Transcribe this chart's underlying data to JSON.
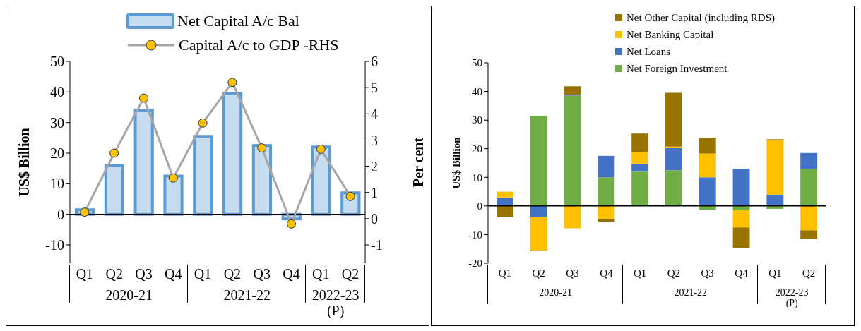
{
  "chart_data": [
    {
      "type": "bar",
      "categories": [
        "Q1",
        "Q2",
        "Q3",
        "Q4",
        "Q1",
        "Q2",
        "Q3",
        "Q4",
        "Q1",
        "Q2"
      ],
      "annotations": [
        "2020-21",
        "2021-22",
        "2022-23 (P)"
      ],
      "ylabel": "US$ Billion",
      "y2label": "Per cent",
      "ylim": [
        -16,
        50
      ],
      "yticks": [
        -10,
        0,
        10,
        20,
        30,
        40,
        50
      ],
      "y2lim": [
        -1.7,
        6
      ],
      "y2ticks": [
        -1,
        0,
        1,
        2,
        3,
        4,
        5,
        6
      ],
      "legend": "top",
      "marker": "circle",
      "series": [
        {
          "name": "Net Capital A/c Bal",
          "color": "#5b9bd5",
          "values": [
            1.5,
            16,
            34,
            12.5,
            25.5,
            39.5,
            22.5,
            -1.5,
            22,
            7
          ]
        },
        {
          "name": "Capital A/c to GDP -RHS",
          "type": "line",
          "axis": "y2",
          "color": "#a6a6a6",
          "values": [
            0.25,
            2.5,
            4.6,
            1.55,
            3.65,
            5.2,
            2.7,
            -0.2,
            2.65,
            0.85
          ]
        }
      ]
    },
    {
      "type": "bar",
      "stacked": true,
      "categories": [
        "Q1",
        "Q2",
        "Q3",
        "Q4",
        "Q1",
        "Q2",
        "Q3",
        "Q4",
        "Q1",
        "Q2"
      ],
      "annotations": [
        "2020-21",
        "2021-22",
        "2022-23 (P)"
      ],
      "ylabel": "US$ Billion",
      "ylim": [
        -20,
        50
      ],
      "yticks": [
        -20,
        -10,
        0,
        10,
        20,
        30,
        40,
        50
      ],
      "legend": "top",
      "series": [
        {
          "name": "Net Foreign Investment",
          "color": "#70ad47",
          "values": [
            0,
            31.5,
            38.5,
            10,
            12,
            12.5,
            -1.3,
            -1.5,
            -1,
            13
          ]
        },
        {
          "name": "Net Loans",
          "color": "#4472c4",
          "values": [
            3,
            -4,
            0.3,
            7.5,
            2.8,
            7.8,
            10,
            13,
            4,
            5.5
          ]
        },
        {
          "name": "Net Banking Capital",
          "color": "#ffc000",
          "values": [
            2,
            -11.5,
            -7.8,
            -4.5,
            4,
            0.4,
            8.3,
            -6,
            19,
            -8.5
          ]
        },
        {
          "name": "Net Other Capital (including RDS)",
          "color": "#997300",
          "values": [
            -3.8,
            -0.3,
            3,
            -1,
            6.5,
            18.8,
            5.5,
            -7.2,
            0.3,
            -3
          ]
        }
      ]
    }
  ]
}
